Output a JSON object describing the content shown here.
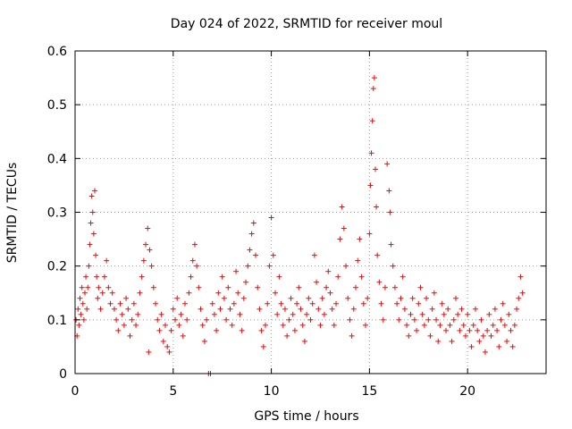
{
  "chart_data": {
    "type": "scatter",
    "title": "Day 024 of 2022, SRMTID for receiver moul",
    "xlabel": "GPS time / hours",
    "ylabel": "SRMTID / TECUs",
    "xlim": [
      0,
      24
    ],
    "ylim": [
      0,
      0.6
    ],
    "x_ticks": [
      0,
      5,
      10,
      15,
      20
    ],
    "x_tick_labels": [
      "0",
      "5",
      "10",
      "15",
      "20"
    ],
    "y_ticks": [
      0,
      0.1,
      0.2,
      0.3,
      0.4,
      0.5,
      0.6
    ],
    "y_tick_labels": [
      "0",
      "0.1",
      "0.2",
      "0.3",
      "0.4",
      "0.5",
      "0.6"
    ],
    "grid": true,
    "marker": "plus",
    "series": [
      {
        "name": "SRMTID",
        "color": "#ff0000",
        "points": [
          [
            0.05,
            0.1
          ],
          [
            0.1,
            0.07
          ],
          [
            0.15,
            0.12
          ],
          [
            0.2,
            0.09
          ],
          [
            0.25,
            0.14
          ],
          [
            0.3,
            0.11
          ],
          [
            0.35,
            0.16
          ],
          [
            0.4,
            0.13
          ],
          [
            0.45,
            0.1
          ],
          [
            0.5,
            0.15
          ],
          [
            0.55,
            0.18
          ],
          [
            0.6,
            0.12
          ],
          [
            0.65,
            0.16
          ],
          [
            0.7,
            0.2
          ],
          [
            0.75,
            0.24
          ],
          [
            0.8,
            0.28
          ],
          [
            0.85,
            0.33
          ],
          [
            0.9,
            0.3
          ],
          [
            0.95,
            0.26
          ],
          [
            1.0,
            0.34
          ],
          [
            1.05,
            0.22
          ],
          [
            1.1,
            0.18
          ],
          [
            1.15,
            0.14
          ],
          [
            1.2,
            0.16
          ],
          [
            1.3,
            0.12
          ],
          [
            1.4,
            0.15
          ],
          [
            1.5,
            0.18
          ],
          [
            1.6,
            0.21
          ],
          [
            1.7,
            0.16
          ],
          [
            1.8,
            0.13
          ],
          [
            1.9,
            0.15
          ],
          [
            2.0,
            0.12
          ],
          [
            2.1,
            0.1
          ],
          [
            2.2,
            0.08
          ],
          [
            2.3,
            0.13
          ],
          [
            2.4,
            0.11
          ],
          [
            2.5,
            0.09
          ],
          [
            2.6,
            0.14
          ],
          [
            2.7,
            0.12
          ],
          [
            2.8,
            0.07
          ],
          [
            2.9,
            0.1
          ],
          [
            3.0,
            0.13
          ],
          [
            3.1,
            0.09
          ],
          [
            3.2,
            0.11
          ],
          [
            3.3,
            0.15
          ],
          [
            3.4,
            0.18
          ],
          [
            3.5,
            0.21
          ],
          [
            3.6,
            0.24
          ],
          [
            3.7,
            0.27
          ],
          [
            3.75,
            0.04
          ],
          [
            3.8,
            0.23
          ],
          [
            3.9,
            0.2
          ],
          [
            4.0,
            0.16
          ],
          [
            4.1,
            0.13
          ],
          [
            4.2,
            0.1
          ],
          [
            4.3,
            0.08
          ],
          [
            4.4,
            0.11
          ],
          [
            4.5,
            0.06
          ],
          [
            4.6,
            0.09
          ],
          [
            4.7,
            0.05
          ],
          [
            4.8,
            0.04
          ],
          [
            4.9,
            0.08
          ],
          [
            5.0,
            0.12
          ],
          [
            5.1,
            0.1
          ],
          [
            5.2,
            0.14
          ],
          [
            5.3,
            0.09
          ],
          [
            5.4,
            0.11
          ],
          [
            5.5,
            0.07
          ],
          [
            5.6,
            0.13
          ],
          [
            5.7,
            0.1
          ],
          [
            5.8,
            0.15
          ],
          [
            5.9,
            0.18
          ],
          [
            6.0,
            0.21
          ],
          [
            6.1,
            0.24
          ],
          [
            6.2,
            0.2
          ],
          [
            6.3,
            0.16
          ],
          [
            6.4,
            0.12
          ],
          [
            6.5,
            0.09
          ],
          [
            6.6,
            0.06
          ],
          [
            6.7,
            0.1
          ],
          [
            6.8,
            0.0
          ],
          [
            6.9,
            0.0
          ],
          [
            7.0,
            0.13
          ],
          [
            7.1,
            0.11
          ],
          [
            7.2,
            0.08
          ],
          [
            7.3,
            0.15
          ],
          [
            7.4,
            0.12
          ],
          [
            7.5,
            0.18
          ],
          [
            7.6,
            0.14
          ],
          [
            7.7,
            0.1
          ],
          [
            7.8,
            0.16
          ],
          [
            7.9,
            0.12
          ],
          [
            8.0,
            0.09
          ],
          [
            8.1,
            0.13
          ],
          [
            8.2,
            0.19
          ],
          [
            8.3,
            0.15
          ],
          [
            8.4,
            0.11
          ],
          [
            8.5,
            0.08
          ],
          [
            8.6,
            0.14
          ],
          [
            8.7,
            0.17
          ],
          [
            8.8,
            0.2
          ],
          [
            8.9,
            0.23
          ],
          [
            9.0,
            0.26
          ],
          [
            9.1,
            0.28
          ],
          [
            9.2,
            0.22
          ],
          [
            9.3,
            0.16
          ],
          [
            9.4,
            0.12
          ],
          [
            9.5,
            0.08
          ],
          [
            9.6,
            0.05
          ],
          [
            9.7,
            0.09
          ],
          [
            9.8,
            0.13
          ],
          [
            9.9,
            0.2
          ],
          [
            10.0,
            0.29
          ],
          [
            10.1,
            0.22
          ],
          [
            10.2,
            0.15
          ],
          [
            10.3,
            0.11
          ],
          [
            10.4,
            0.18
          ],
          [
            10.5,
            0.13
          ],
          [
            10.6,
            0.09
          ],
          [
            10.7,
            0.12
          ],
          [
            10.8,
            0.07
          ],
          [
            10.9,
            0.1
          ],
          [
            11.0,
            0.14
          ],
          [
            11.1,
            0.11
          ],
          [
            11.2,
            0.08
          ],
          [
            11.3,
            0.13
          ],
          [
            11.4,
            0.16
          ],
          [
            11.5,
            0.12
          ],
          [
            11.6,
            0.09
          ],
          [
            11.7,
            0.06
          ],
          [
            11.8,
            0.11
          ],
          [
            11.9,
            0.14
          ],
          [
            12.0,
            0.1
          ],
          [
            12.1,
            0.13
          ],
          [
            12.2,
            0.22
          ],
          [
            12.3,
            0.17
          ],
          [
            12.4,
            0.12
          ],
          [
            12.5,
            0.09
          ],
          [
            12.6,
            0.14
          ],
          [
            12.7,
            0.11
          ],
          [
            12.8,
            0.16
          ],
          [
            12.9,
            0.19
          ],
          [
            13.0,
            0.15
          ],
          [
            13.1,
            0.12
          ],
          [
            13.2,
            0.09
          ],
          [
            13.3,
            0.13
          ],
          [
            13.4,
            0.18
          ],
          [
            13.5,
            0.25
          ],
          [
            13.6,
            0.31
          ],
          [
            13.7,
            0.27
          ],
          [
            13.8,
            0.2
          ],
          [
            13.9,
            0.14
          ],
          [
            14.0,
            0.1
          ],
          [
            14.1,
            0.07
          ],
          [
            14.2,
            0.12
          ],
          [
            14.3,
            0.16
          ],
          [
            14.4,
            0.21
          ],
          [
            14.5,
            0.25
          ],
          [
            14.6,
            0.18
          ],
          [
            14.7,
            0.13
          ],
          [
            14.8,
            0.09
          ],
          [
            14.9,
            0.14
          ],
          [
            15.0,
            0.26
          ],
          [
            15.05,
            0.35
          ],
          [
            15.1,
            0.41
          ],
          [
            15.15,
            0.47
          ],
          [
            15.2,
            0.53
          ],
          [
            15.25,
            0.55
          ],
          [
            15.3,
            0.38
          ],
          [
            15.35,
            0.31
          ],
          [
            15.4,
            0.22
          ],
          [
            15.5,
            0.17
          ],
          [
            15.6,
            0.13
          ],
          [
            15.7,
            0.1
          ],
          [
            15.8,
            0.16
          ],
          [
            15.9,
            0.39
          ],
          [
            16.0,
            0.34
          ],
          [
            16.05,
            0.3
          ],
          [
            16.1,
            0.24
          ],
          [
            16.2,
            0.2
          ],
          [
            16.3,
            0.16
          ],
          [
            16.4,
            0.13
          ],
          [
            16.5,
            0.1
          ],
          [
            16.6,
            0.14
          ],
          [
            16.7,
            0.18
          ],
          [
            16.8,
            0.12
          ],
          [
            16.9,
            0.09
          ],
          [
            17.0,
            0.07
          ],
          [
            17.1,
            0.11
          ],
          [
            17.2,
            0.14
          ],
          [
            17.3,
            0.1
          ],
          [
            17.4,
            0.08
          ],
          [
            17.5,
            0.13
          ],
          [
            17.6,
            0.16
          ],
          [
            17.7,
            0.11
          ],
          [
            17.8,
            0.09
          ],
          [
            17.9,
            0.14
          ],
          [
            18.0,
            0.1
          ],
          [
            18.1,
            0.07
          ],
          [
            18.2,
            0.12
          ],
          [
            18.3,
            0.15
          ],
          [
            18.4,
            0.1
          ],
          [
            18.5,
            0.06
          ],
          [
            18.6,
            0.09
          ],
          [
            18.7,
            0.13
          ],
          [
            18.8,
            0.11
          ],
          [
            18.9,
            0.08
          ],
          [
            19.0,
            0.12
          ],
          [
            19.1,
            0.09
          ],
          [
            19.2,
            0.06
          ],
          [
            19.3,
            0.1
          ],
          [
            19.4,
            0.14
          ],
          [
            19.5,
            0.11
          ],
          [
            19.6,
            0.08
          ],
          [
            19.7,
            0.12
          ],
          [
            19.8,
            0.09
          ],
          [
            19.9,
            0.07
          ],
          [
            20.0,
            0.11
          ],
          [
            20.1,
            0.08
          ],
          [
            20.2,
            0.05
          ],
          [
            20.3,
            0.09
          ],
          [
            20.4,
            0.12
          ],
          [
            20.5,
            0.08
          ],
          [
            20.6,
            0.06
          ],
          [
            20.7,
            0.1
          ],
          [
            20.8,
            0.07
          ],
          [
            20.9,
            0.04
          ],
          [
            21.0,
            0.08
          ],
          [
            21.1,
            0.11
          ],
          [
            21.2,
            0.07
          ],
          [
            21.3,
            0.09
          ],
          [
            21.4,
            0.12
          ],
          [
            21.5,
            0.08
          ],
          [
            21.6,
            0.05
          ],
          [
            21.7,
            0.1
          ],
          [
            21.8,
            0.13
          ],
          [
            21.9,
            0.09
          ],
          [
            22.0,
            0.06
          ],
          [
            22.1,
            0.11
          ],
          [
            22.2,
            0.08
          ],
          [
            22.3,
            0.05
          ],
          [
            22.4,
            0.09
          ],
          [
            22.5,
            0.12
          ],
          [
            22.6,
            0.14
          ],
          [
            22.7,
            0.18
          ],
          [
            22.8,
            0.15
          ]
        ]
      }
    ]
  }
}
